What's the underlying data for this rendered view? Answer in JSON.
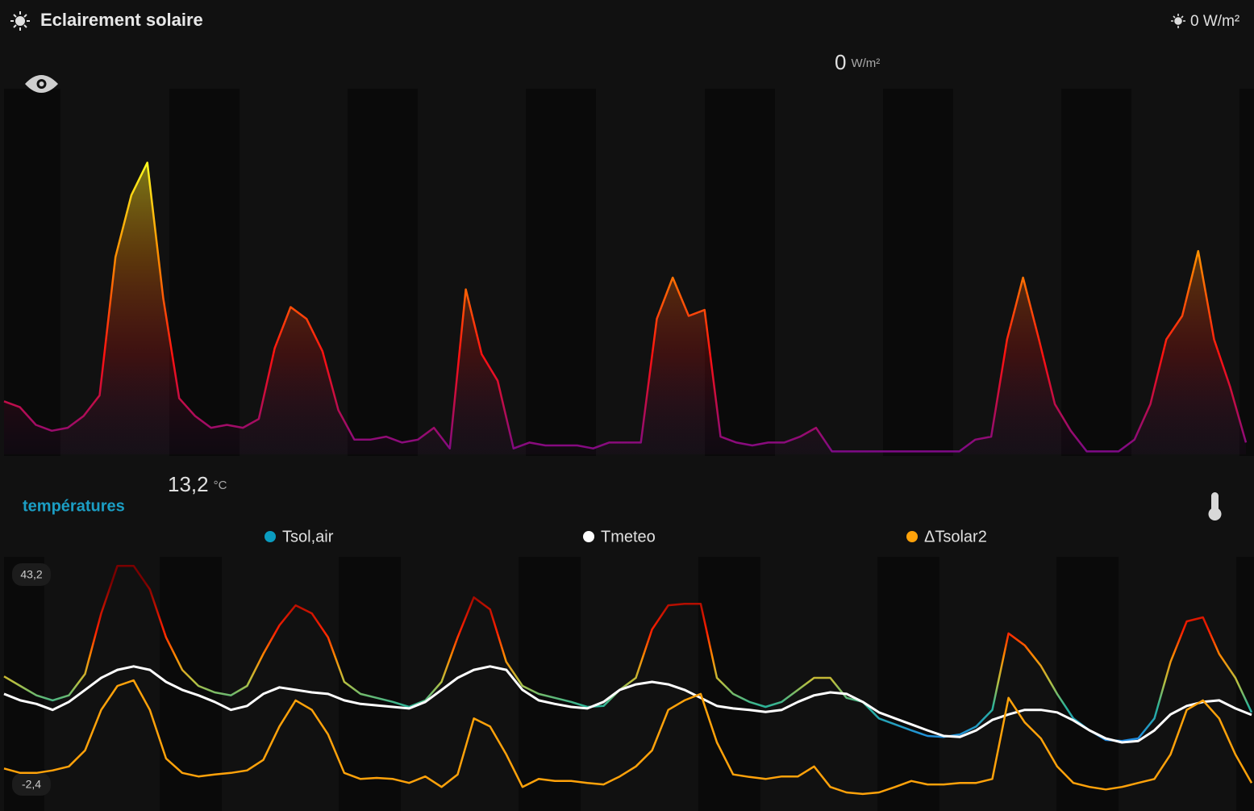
{
  "header": {
    "title": "Eclairement solaire",
    "state": 0,
    "unit": "W/m²"
  },
  "chart_data": [
    {
      "type": "area",
      "value": 0,
      "unit": "W/m²",
      "ylim": [
        0,
        100
      ],
      "colors": [
        "#7a0a8a",
        "#ff1010",
        "#ff8a00",
        "#ffff20"
      ],
      "values": [
        18,
        16,
        10,
        8,
        9,
        13,
        20,
        67,
        88,
        99,
        53,
        19,
        13,
        9,
        10,
        9,
        12,
        36,
        50,
        46,
        35,
        15,
        5,
        5,
        6,
        4,
        5,
        9,
        2,
        56,
        34,
        25,
        2,
        4,
        3,
        3,
        3,
        2,
        4,
        4,
        4,
        46,
        60,
        47,
        49,
        6,
        4,
        3,
        4,
        4,
        6,
        9,
        1,
        1,
        1,
        1,
        1,
        1,
        1,
        1,
        1,
        5,
        6,
        39,
        60,
        39,
        17,
        8,
        1,
        1,
        1,
        5,
        17,
        39,
        47,
        69,
        39,
        23,
        4
      ]
    },
    {
      "type": "line",
      "name": "températures",
      "value": "13,2",
      "unit": "°C",
      "ylim": [
        -5,
        45
      ],
      "yticks": [
        {
          "value": 43.2,
          "label": "43,2"
        },
        {
          "value": -2.4,
          "label": "-2,4"
        }
      ],
      "color_scale": [
        {
          "value": 8,
          "color": "#1e88e5"
        },
        {
          "value": 15,
          "color": "#2ab39a"
        },
        {
          "value": 20,
          "color": "#b8c040"
        },
        {
          "value": 25,
          "color": "#ff8c00"
        },
        {
          "value": 30,
          "color": "#ff2000"
        },
        {
          "value": 40,
          "color": "#7a0000"
        }
      ],
      "series": [
        {
          "name": "Tsol,air",
          "color": "#0a9cc0",
          "values": [
            21.1,
            19.2,
            17.3,
            16.3,
            17.3,
            21.6,
            33.7,
            43.2,
            43.2,
            38.5,
            28.9,
            22.4,
            19.2,
            17.9,
            17.3,
            19.2,
            25.6,
            31.3,
            35.3,
            33.7,
            28.9,
            20,
            17.6,
            16.8,
            16,
            15,
            16.3,
            20,
            28.9,
            36.9,
            34.5,
            24,
            19.2,
            17.6,
            16.8,
            16,
            15,
            15.2,
            18.4,
            20.8,
            30.5,
            35.3,
            35.6,
            35.6,
            20.8,
            17.6,
            16,
            15,
            16,
            18.4,
            20.8,
            20.8,
            16.8,
            16,
            12.7,
            11.5,
            10.3,
            9.2,
            9,
            9.5,
            11.1,
            14.4,
            29.7,
            27.3,
            23.2,
            17.6,
            12.7,
            10.3,
            8.4,
            8.2,
            8.7,
            12.7,
            24,
            32.1,
            32.9,
            25.6,
            20.8,
            13.9
          ]
        },
        {
          "name": "Tmeteo",
          "color": "#ffffff",
          "values": [
            17.6,
            16.3,
            15.6,
            14.4,
            16,
            18.4,
            20.8,
            22.4,
            23.1,
            22.4,
            20,
            18.4,
            17.3,
            16,
            14.4,
            15.2,
            17.6,
            18.9,
            18.4,
            17.9,
            17.6,
            16.3,
            15.6,
            15.3,
            15,
            14.7,
            16,
            18.4,
            20.8,
            22.4,
            23.1,
            22.4,
            18.4,
            16.3,
            15.6,
            15,
            14.7,
            16,
            18.4,
            19.5,
            20,
            19.5,
            18.4,
            16.8,
            15.2,
            14.7,
            14.4,
            14,
            14.4,
            16,
            17.3,
            17.9,
            17.6,
            16,
            13.9,
            12.7,
            11.5,
            10.3,
            9.2,
            9,
            10.3,
            12.4,
            13.5,
            14.4,
            14.4,
            13.9,
            12.3,
            10.3,
            8.7,
            7.9,
            8.2,
            10.3,
            13.5,
            15.2,
            16,
            16.3,
            14.7,
            13.4
          ]
        },
        {
          "name": "ΔTsolar2",
          "color": "#ffa20a",
          "values": [
            2.7,
            1.8,
            1.8,
            2.3,
            3.1,
            6.3,
            14.4,
            19.2,
            20.3,
            14.4,
            4.7,
            1.8,
            1.1,
            1.5,
            1.8,
            2.3,
            4.4,
            11.1,
            16.3,
            14.4,
            9.5,
            1.8,
            0.6,
            0.8,
            0.6,
            -0.2,
            1.1,
            -1,
            1.5,
            12.7,
            11.1,
            5.5,
            -1,
            0.6,
            0.2,
            0.2,
            -0.2,
            -0.5,
            1.1,
            3.1,
            6.3,
            14.4,
            16.3,
            17.6,
            7.9,
            1.5,
            1,
            0.6,
            1.1,
            1.1,
            3.1,
            -1,
            -2.1,
            -2.4,
            -2.1,
            -1,
            0.2,
            -0.5,
            -0.5,
            -0.2,
            -0.2,
            0.6,
            16.8,
            11.9,
            8.7,
            3.1,
            -0.2,
            -1,
            -1.5,
            -1,
            -0.2,
            0.6,
            5.5,
            14.4,
            16.3,
            12.7,
            5.5,
            -0.2
          ]
        }
      ]
    }
  ]
}
